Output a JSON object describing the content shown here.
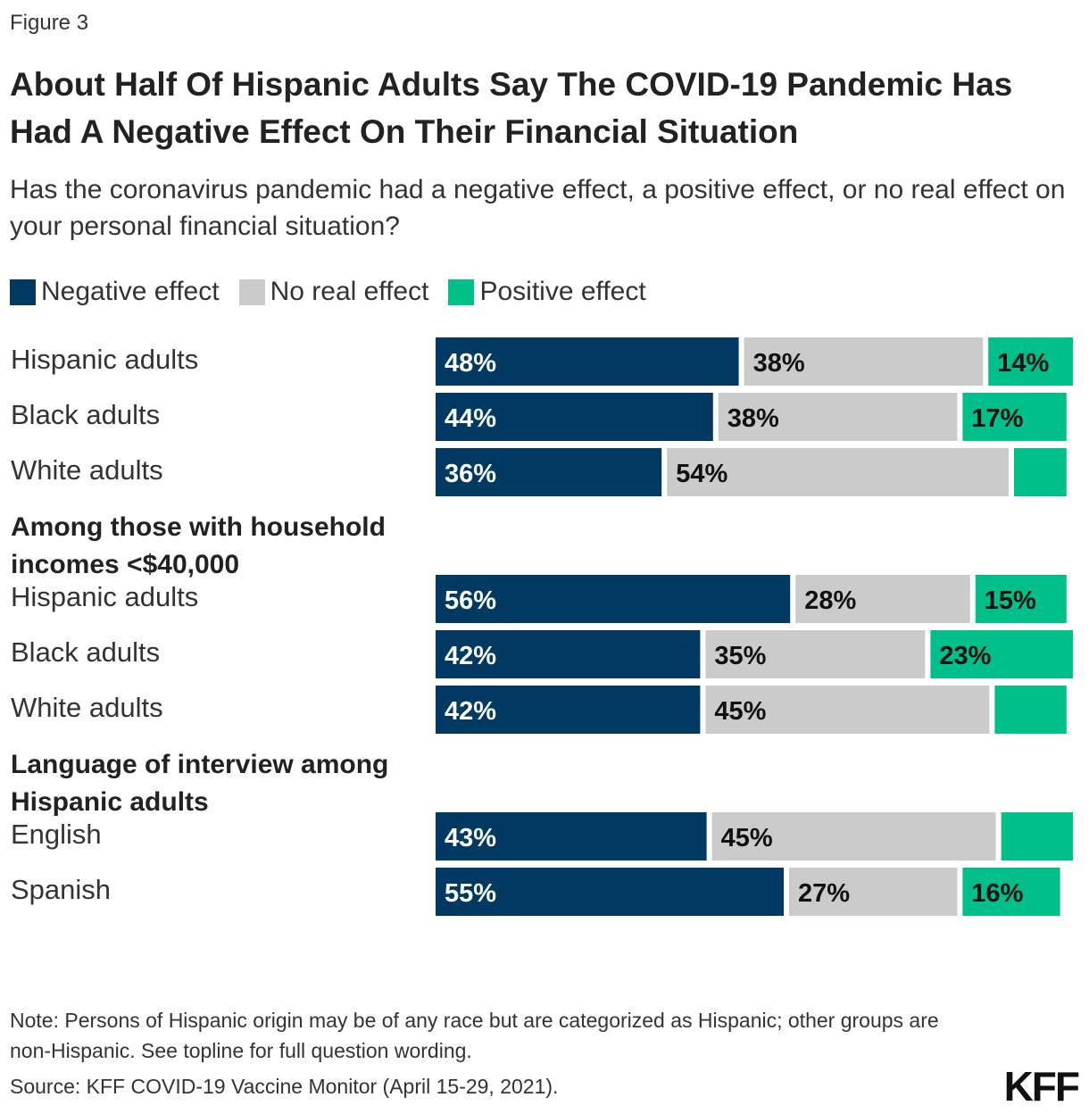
{
  "figure_label": "Figure 3",
  "title": "About Half Of Hispanic Adults Say The COVID-19 Pandemic Has Had A Negative Effect On Their Financial Situation",
  "subtitle": "Has the coronavirus pandemic had a negative effect, a positive effect, or no real effect on your personal financial situation?",
  "legend": [
    {
      "label": "Negative effect",
      "color": "#003a63"
    },
    {
      "label": "No real effect",
      "color": "#cbcbcb"
    },
    {
      "label": "Positive effect",
      "color": "#00bf8a"
    }
  ],
  "chart_data": {
    "type": "bar",
    "orientation": "horizontal",
    "stacked": true,
    "series_names": [
      "Negative effect",
      "No real effect",
      "Positive effect"
    ],
    "colors": [
      "#003a63",
      "#cbcbcb",
      "#00bf8a"
    ],
    "rows": [
      {
        "kind": "bar",
        "label": "Hispanic adults",
        "values": [
          48,
          38,
          14
        ],
        "value_labels": [
          "48%",
          "38%",
          "14%"
        ]
      },
      {
        "kind": "bar",
        "label": "Black adults",
        "values": [
          44,
          38,
          17
        ],
        "value_labels": [
          "44%",
          "38%",
          "17%"
        ]
      },
      {
        "kind": "bar",
        "label": "White adults",
        "values": [
          36,
          54,
          9
        ],
        "value_labels": [
          "36%",
          "54%",
          ""
        ]
      },
      {
        "kind": "heading",
        "label": "Among those with household incomes <$40,000"
      },
      {
        "kind": "bar",
        "label": "Hispanic adults",
        "values": [
          56,
          28,
          15
        ],
        "value_labels": [
          "56%",
          "28%",
          "15%"
        ]
      },
      {
        "kind": "bar",
        "label": "Black adults",
        "values": [
          42,
          35,
          23
        ],
        "value_labels": [
          "42%",
          "35%",
          "23%"
        ]
      },
      {
        "kind": "bar",
        "label": "White adults",
        "values": [
          42,
          45,
          12
        ],
        "value_labels": [
          "42%",
          "45%",
          ""
        ]
      },
      {
        "kind": "heading",
        "label": "Language of interview among Hispanic adults"
      },
      {
        "kind": "bar",
        "label": "English",
        "values": [
          43,
          45,
          12
        ],
        "value_labels": [
          "43%",
          "45%",
          ""
        ]
      },
      {
        "kind": "bar",
        "label": "Spanish",
        "values": [
          55,
          27,
          16
        ],
        "value_labels": [
          "55%",
          "27%",
          "16%"
        ]
      }
    ]
  },
  "note": "Note: Persons of Hispanic origin may be of any race but are categorized as Hispanic; other groups are non-Hispanic. See topline for full question wording.",
  "source": "Source: KFF COVID-19 Vaccine Monitor (April 15-29, 2021).",
  "logo_text": "KFF"
}
